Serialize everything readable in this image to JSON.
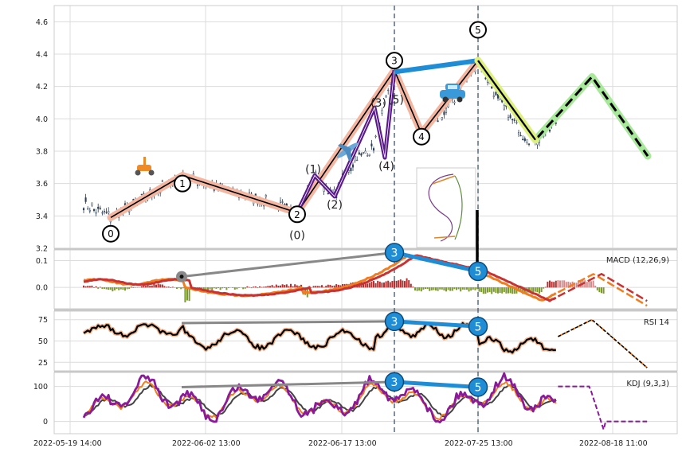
{
  "chart_data": {
    "type": "line",
    "title": "",
    "x_tick_labels": [
      "2022-05-19 14:00",
      "2022-06-02 13:00",
      "2022-06-17 13:00",
      "2022-07-25 13:00",
      "2022-08-18 11:00"
    ],
    "panels": {
      "price": {
        "ylim": [
          3.2,
          4.7
        ],
        "yticks": [
          "3.2",
          "3.4",
          "3.6",
          "3.8",
          "4.0",
          "4.2",
          "4.4",
          "4.6"
        ],
        "wave_points": [
          {
            "label": "0",
            "y": 3.39
          },
          {
            "label": "1",
            "y": 3.65
          },
          {
            "label": "2",
            "y": 3.42
          },
          {
            "label": "3",
            "y": 4.3
          },
          {
            "label": "4",
            "y": 3.91
          },
          {
            "label": "5",
            "y": 4.36
          }
        ],
        "sub_wave_labels": [
          "(0)",
          "(1)",
          "(2)",
          "(3)",
          "(4)",
          "(5)"
        ],
        "projection": [
          4.36,
          3.87,
          4.26,
          3.77
        ],
        "colors": {
          "wave": "#f4b6a0",
          "wave_line": "#000000",
          "sub_wave": "#5b1a8c",
          "divergence": "#1f8dd6",
          "projection": "#a8e89a"
        }
      },
      "macd": {
        "label": "MACD (12,26,9)",
        "yticks": [
          "0.0",
          "0.1"
        ],
        "ylim": [
          -0.08,
          0.14
        ],
        "divergence_labels": [
          "3",
          "5"
        ]
      },
      "rsi": {
        "label": "RSI 14",
        "yticks": [
          "25",
          "50",
          "75"
        ],
        "ylim": [
          15,
          85
        ],
        "divergence_labels": [
          "3",
          "5"
        ]
      },
      "kdj": {
        "label": "KDJ (9,3,3)",
        "yticks": [
          "0",
          "100"
        ],
        "ylim": [
          -35,
          140
        ],
        "divergence_labels": [
          "3",
          "5"
        ]
      }
    },
    "grid": true,
    "legend": "none"
  }
}
